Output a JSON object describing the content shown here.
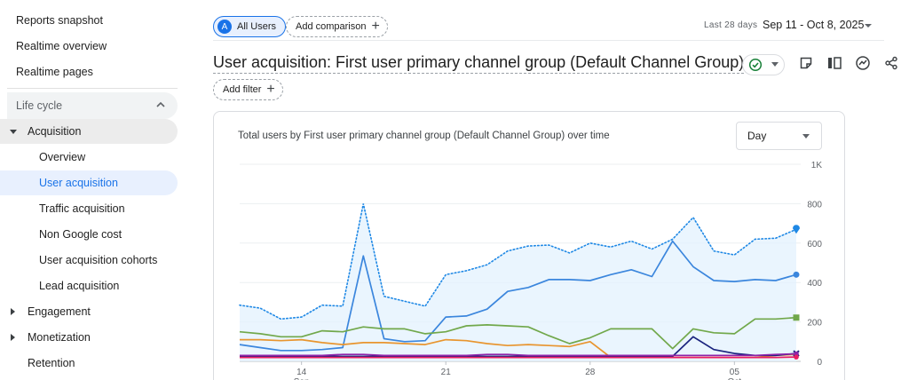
{
  "sidebar": {
    "top_items": [
      "Reports snapshot",
      "Realtime overview",
      "Realtime pages"
    ],
    "section_label": "Life cycle",
    "acquisition_label": "Acquisition",
    "acquisition_items": [
      "Overview",
      "User acquisition",
      "Traffic acquisition",
      "Non Google cost",
      "User acquisition cohorts",
      "Lead acquisition"
    ],
    "active_item": "User acquisition",
    "bottom_items": [
      "Engagement",
      "Monetization",
      "Retention"
    ]
  },
  "toolbar": {
    "segment_initial": "A",
    "segment_label": "All Users",
    "add_comparison_label": "Add comparison",
    "add_filter_label": "Add filter",
    "date_period_label": "Last 28 days",
    "date_range": "Sep 11 - Oct 8, 2025"
  },
  "page": {
    "title": "User acquisition: First user primary channel group (Default Channel Group)"
  },
  "card": {
    "chart_title": "Total users by First user primary channel group (Default Channel Group) over time",
    "granularity": "Day"
  },
  "colors": {
    "accent": "#1a73e8",
    "total": "#1e88e5",
    "direct": "#3b86dd",
    "organic_green": "#71a84b",
    "orange": "#e8952f",
    "navy": "#1a237e",
    "purple": "#8e24aa",
    "pink": "#e91e63",
    "area_fill": "#e3f2fd"
  },
  "chart_data": {
    "type": "line",
    "x_ticks": [
      {
        "day": "14",
        "month": "Sep"
      },
      {
        "day": "21",
        "month": ""
      },
      {
        "day": "28",
        "month": ""
      },
      {
        "day": "05",
        "month": "Oct"
      }
    ],
    "y_ticks": [
      "1K",
      "800",
      "600",
      "400",
      "200",
      "0"
    ],
    "ylim": [
      0,
      1000
    ],
    "x": [
      "Sep 11",
      "Sep 12",
      "Sep 13",
      "Sep 14",
      "Sep 15",
      "Sep 16",
      "Sep 17",
      "Sep 18",
      "Sep 19",
      "Sep 20",
      "Sep 21",
      "Sep 22",
      "Sep 23",
      "Sep 24",
      "Sep 25",
      "Sep 26",
      "Sep 27",
      "Sep 28",
      "Sep 29",
      "Sep 30",
      "Oct 1",
      "Oct 2",
      "Oct 3",
      "Oct 4",
      "Oct 5",
      "Oct 6",
      "Oct 7",
      "Oct 8"
    ],
    "series": [
      {
        "style": "dotted-area",
        "color": "#1e88e5",
        "values": [
          285,
          270,
          215,
          225,
          285,
          280,
          800,
          330,
          305,
          280,
          440,
          460,
          490,
          560,
          585,
          590,
          550,
          600,
          580,
          610,
          570,
          620,
          730,
          560,
          540,
          620,
          625,
          670
        ]
      },
      {
        "style": "solid",
        "color": "#3b86dd",
        "values": [
          85,
          70,
          55,
          55,
          60,
          70,
          535,
          115,
          100,
          105,
          225,
          230,
          265,
          355,
          375,
          415,
          415,
          410,
          440,
          465,
          430,
          610,
          480,
          410,
          405,
          415,
          410,
          440
        ]
      },
      {
        "style": "solid",
        "color": "#71a84b",
        "values": [
          150,
          140,
          125,
          125,
          155,
          150,
          175,
          165,
          165,
          140,
          150,
          180,
          185,
          180,
          175,
          130,
          90,
          120,
          165,
          165,
          165,
          65,
          165,
          145,
          140,
          215,
          215,
          222
        ]
      },
      {
        "style": "solid",
        "color": "#e8952f",
        "values": [
          110,
          110,
          105,
          110,
          95,
          85,
          95,
          95,
          90,
          85,
          110,
          105,
          90,
          80,
          85,
          80,
          75,
          100,
          20,
          20,
          20,
          20,
          20,
          20,
          20,
          20,
          30,
          35
        ]
      },
      {
        "style": "solid",
        "color": "#1a237e",
        "values": [
          25,
          25,
          25,
          25,
          25,
          25,
          25,
          25,
          25,
          25,
          25,
          25,
          25,
          25,
          25,
          25,
          25,
          25,
          25,
          25,
          25,
          25,
          125,
          60,
          40,
          30,
          30,
          40
        ]
      },
      {
        "style": "solid",
        "color": "#8e24aa",
        "values": [
          30,
          30,
          30,
          30,
          30,
          35,
          35,
          30,
          30,
          30,
          30,
          30,
          35,
          35,
          30,
          30,
          30,
          30,
          30,
          30,
          30,
          30,
          30,
          30,
          30,
          30,
          35,
          38
        ]
      },
      {
        "style": "solid",
        "color": "#e91e63",
        "values": [
          20,
          20,
          20,
          20,
          20,
          20,
          20,
          20,
          20,
          20,
          20,
          20,
          20,
          20,
          20,
          20,
          20,
          20,
          20,
          20,
          20,
          20,
          20,
          20,
          20,
          20,
          20,
          22
        ]
      }
    ]
  }
}
